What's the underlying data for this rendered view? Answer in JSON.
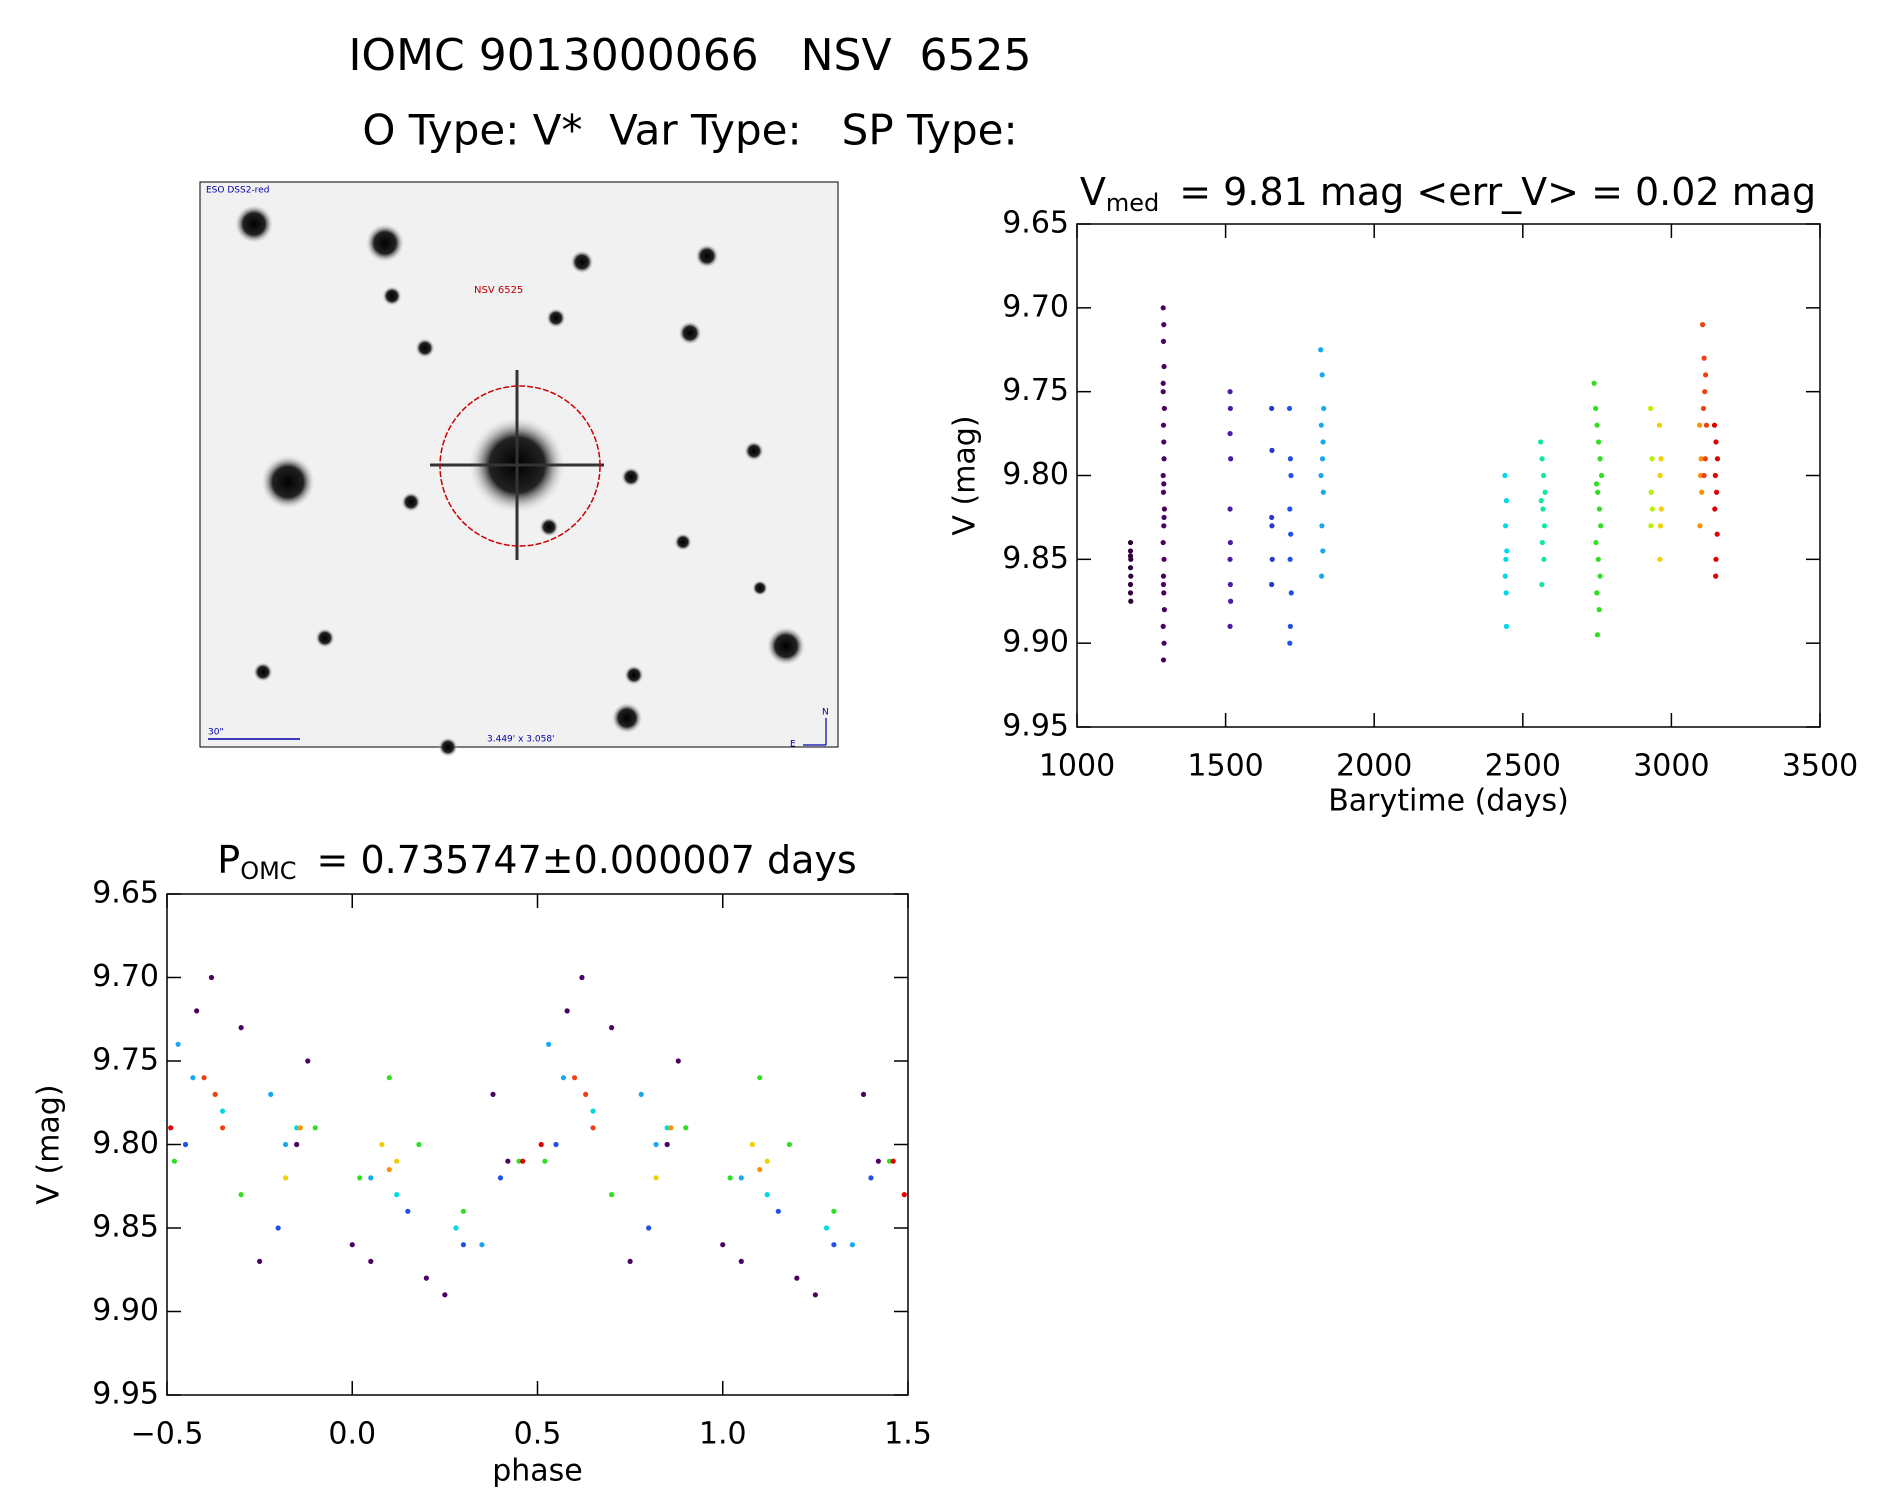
{
  "header": {
    "title": "IOMC 9013000066   NSV  6525",
    "subtitle": "O Type: V*  Var Type:   SP Type:"
  },
  "image_panel": {
    "survey": "ESO DSS2-red",
    "target": "NSV 6525",
    "scale": "30\"",
    "field": "3.449' x 3.058'",
    "north": "N",
    "east": "E"
  },
  "chart_data": [
    {
      "type": "scatter",
      "title": {
        "main": "V",
        "sub": "med",
        "rest": "= 9.81 mag <err_V> = 0.02 mag"
      },
      "x_label": "Barytime (days)",
      "y_label": "V (mag)",
      "xlim": [
        1000,
        3500
      ],
      "xticks": [
        1000,
        1500,
        2000,
        2500,
        3000,
        3500
      ],
      "ylim": [
        9.95,
        9.65
      ],
      "yticks": [
        9.65,
        {
          "value": 9.7,
          "label": "9.70"
        },
        9.75,
        {
          "value": 9.8,
          "label": "9.80"
        },
        9.85,
        {
          "value": 9.9,
          "label": "9.90"
        },
        9.95
      ],
      "series": [
        {
          "color": "#300038",
          "x": [
            1180,
            1180,
            1181,
            1180,
            1181,
            1180,
            1180,
            1181,
            1180
          ],
          "values": [
            9.84,
            9.845,
            9.85,
            9.855,
            9.86,
            9.865,
            9.87,
            9.875,
            9.848
          ]
        },
        {
          "color": "#4b0064",
          "x": [
            1290,
            1292,
            1291,
            1293,
            1290,
            1294,
            1291,
            1292,
            1293,
            1290,
            1291,
            1294,
            1292,
            1290,
            1293,
            1291,
            1292,
            1294,
            1290,
            1293,
            1291,
            1292,
            1290,
            1293,
            1291
          ],
          "values": [
            9.7,
            9.71,
            9.72,
            9.735,
            9.75,
            9.76,
            9.77,
            9.78,
            9.79,
            9.8,
            9.81,
            9.82,
            9.83,
            9.84,
            9.85,
            9.86,
            9.87,
            9.88,
            9.89,
            9.9,
            9.91,
            9.805,
            9.745,
            9.825,
            9.865
          ]
        },
        {
          "color": "#4a1aa8",
          "x": [
            1515,
            1516,
            1515,
            1517,
            1515,
            1516,
            1515,
            1516,
            1517,
            1515
          ],
          "values": [
            9.75,
            9.76,
            9.775,
            9.79,
            9.82,
            9.84,
            9.85,
            9.865,
            9.875,
            9.89
          ]
        },
        {
          "color": "#2838c8",
          "x": [
            1655,
            1656,
            1655,
            1656,
            1657,
            1655
          ],
          "values": [
            9.76,
            9.785,
            9.825,
            9.83,
            9.85,
            9.865
          ]
        },
        {
          "color": "#2050e8",
          "x": [
            1715,
            1718,
            1720,
            1716,
            1719,
            1717,
            1721,
            1718,
            1716
          ],
          "values": [
            9.76,
            9.79,
            9.8,
            9.82,
            9.835,
            9.85,
            9.87,
            9.89,
            9.9
          ]
        },
        {
          "color": "#18a8f0",
          "x": [
            1820,
            1825,
            1830,
            1822,
            1828,
            1826,
            1821,
            1829,
            1824,
            1827,
            1823
          ],
          "values": [
            9.725,
            9.74,
            9.76,
            9.77,
            9.78,
            9.79,
            9.8,
            9.81,
            9.83,
            9.845,
            9.86
          ]
        },
        {
          "color": "#00d8e8",
          "x": [
            2440,
            2445,
            2442,
            2446,
            2443,
            2441,
            2444,
            2445
          ],
          "values": [
            9.8,
            9.815,
            9.83,
            9.845,
            9.85,
            9.86,
            9.87,
            9.89
          ]
        },
        {
          "color": "#10e8a0",
          "x": [
            2560,
            2565,
            2570,
            2575,
            2562,
            2568,
            2573,
            2566,
            2571,
            2564
          ],
          "values": [
            9.78,
            9.79,
            9.8,
            9.81,
            9.815,
            9.82,
            9.83,
            9.84,
            9.85,
            9.865
          ]
        },
        {
          "color": "#30e020",
          "x": [
            2740,
            2745,
            2750,
            2755,
            2760,
            2765,
            2748,
            2752,
            2758,
            2762,
            2746,
            2754,
            2760,
            2749,
            2757,
            2751
          ],
          "values": [
            9.745,
            9.76,
            9.77,
            9.78,
            9.79,
            9.8,
            9.805,
            9.81,
            9.82,
            9.83,
            9.84,
            9.85,
            9.86,
            9.87,
            9.88,
            9.895
          ]
        },
        {
          "color": "#b8f000",
          "x": [
            2930,
            2935,
            2932,
            2936,
            2931
          ],
          "values": [
            9.76,
            9.79,
            9.81,
            9.82,
            9.83
          ]
        },
        {
          "color": "#f0d000",
          "x": [
            2960,
            2965,
            2962,
            2966,
            2963,
            2961
          ],
          "values": [
            9.77,
            9.79,
            9.8,
            9.82,
            9.83,
            9.85
          ]
        },
        {
          "color": "#ff9000",
          "x": [
            3095,
            3100,
            3098,
            3102,
            3096
          ],
          "values": [
            9.77,
            9.79,
            9.8,
            9.81,
            9.83
          ]
        },
        {
          "color": "#f04010",
          "x": [
            3105,
            3110,
            3115,
            3112,
            3108,
            3118,
            3114,
            3110
          ],
          "values": [
            9.71,
            9.73,
            9.74,
            9.75,
            9.76,
            9.77,
            9.79,
            9.8
          ]
        },
        {
          "color": "#e00000",
          "x": [
            3145,
            3150,
            3155,
            3148,
            3152,
            3146,
            3154,
            3150,
            3149
          ],
          "values": [
            9.77,
            9.78,
            9.79,
            9.8,
            9.81,
            9.82,
            9.835,
            9.85,
            9.86
          ]
        }
      ]
    },
    {
      "type": "scatter",
      "title": {
        "main": "P",
        "sub": "OMC",
        "rest": "= 0.735747±0.000007 days"
      },
      "x_label": "phase",
      "y_label": "V (mag)",
      "xlim": [
        -0.5,
        1.5
      ],
      "xticks": [
        {
          "value": -0.5,
          "label": "−0.5"
        },
        {
          "value": 0,
          "label": "0.0"
        },
        0.5,
        {
          "value": 1,
          "label": "1.0"
        },
        1.5
      ],
      "ylim": [
        9.95,
        9.65
      ],
      "yticks": [
        9.65,
        {
          "value": 9.7,
          "label": "9.70"
        },
        9.75,
        {
          "value": 9.8,
          "label": "9.80"
        },
        9.85,
        {
          "value": 9.9,
          "label": "9.90"
        },
        9.95
      ],
      "series": [
        {
          "color": "#4b0064",
          "x": [
            -0.42,
            -0.38,
            -0.3,
            -0.25,
            -0.15,
            -0.12,
            0.0,
            0.05,
            0.2,
            0.25,
            0.38,
            0.42,
            0.58,
            0.62,
            0.7,
            0.75,
            0.85,
            0.88,
            1.0,
            1.05,
            1.2,
            1.25,
            1.38,
            1.42
          ],
          "values": [
            9.72,
            9.7,
            9.73,
            9.87,
            9.8,
            9.75,
            9.86,
            9.87,
            9.88,
            9.89,
            9.77,
            9.81,
            9.72,
            9.7,
            9.73,
            9.87,
            9.8,
            9.75,
            9.86,
            9.87,
            9.88,
            9.89,
            9.77,
            9.81
          ]
        },
        {
          "color": "#2050e8",
          "x": [
            -0.45,
            -0.2,
            0.15,
            0.3,
            0.4,
            0.55,
            0.8,
            1.15,
            1.3,
            1.4
          ],
          "values": [
            9.8,
            9.85,
            9.84,
            9.86,
            9.82,
            9.8,
            9.85,
            9.84,
            9.86,
            9.82
          ]
        },
        {
          "color": "#18a8f0",
          "x": [
            -0.47,
            -0.43,
            -0.22,
            -0.18,
            0.05,
            0.35,
            0.53,
            0.57,
            0.78,
            0.82,
            1.05,
            1.35
          ],
          "values": [
            9.74,
            9.76,
            9.77,
            9.8,
            9.82,
            9.86,
            9.74,
            9.76,
            9.77,
            9.8,
            9.82,
            9.86
          ]
        },
        {
          "color": "#00d8e8",
          "x": [
            -0.35,
            -0.15,
            0.12,
            0.28,
            0.65,
            0.85,
            1.12,
            1.28
          ],
          "values": [
            9.78,
            9.79,
            9.83,
            9.85,
            9.78,
            9.79,
            9.83,
            9.85
          ]
        },
        {
          "color": "#30e020",
          "x": [
            -0.48,
            -0.3,
            -0.1,
            0.02,
            0.1,
            0.18,
            0.3,
            0.45,
            0.52,
            0.7,
            0.9,
            1.02,
            1.1,
            1.18,
            1.3,
            1.45
          ],
          "values": [
            9.81,
            9.83,
            9.79,
            9.82,
            9.76,
            9.8,
            9.84,
            9.81,
            9.81,
            9.83,
            9.79,
            9.82,
            9.76,
            9.8,
            9.84,
            9.81
          ]
        },
        {
          "color": "#f0d000",
          "x": [
            -0.18,
            0.08,
            0.12,
            0.82,
            1.08,
            1.12
          ],
          "values": [
            9.82,
            9.8,
            9.81,
            9.82,
            9.8,
            9.81
          ]
        },
        {
          "color": "#ff9000",
          "x": [
            -0.14,
            0.1,
            0.86,
            1.1
          ],
          "values": [
            9.79,
            9.815,
            9.79,
            9.815
          ]
        },
        {
          "color": "#f04010",
          "x": [
            -0.4,
            -0.37,
            -0.35,
            0.6,
            0.63,
            0.65
          ],
          "values": [
            9.76,
            9.77,
            9.79,
            9.76,
            9.77,
            9.79
          ]
        },
        {
          "color": "#e00000",
          "x": [
            -0.49,
            0.46,
            0.51,
            1.46,
            1.49
          ],
          "values": [
            9.79,
            9.81,
            9.8,
            9.81,
            9.83
          ]
        }
      ]
    }
  ]
}
